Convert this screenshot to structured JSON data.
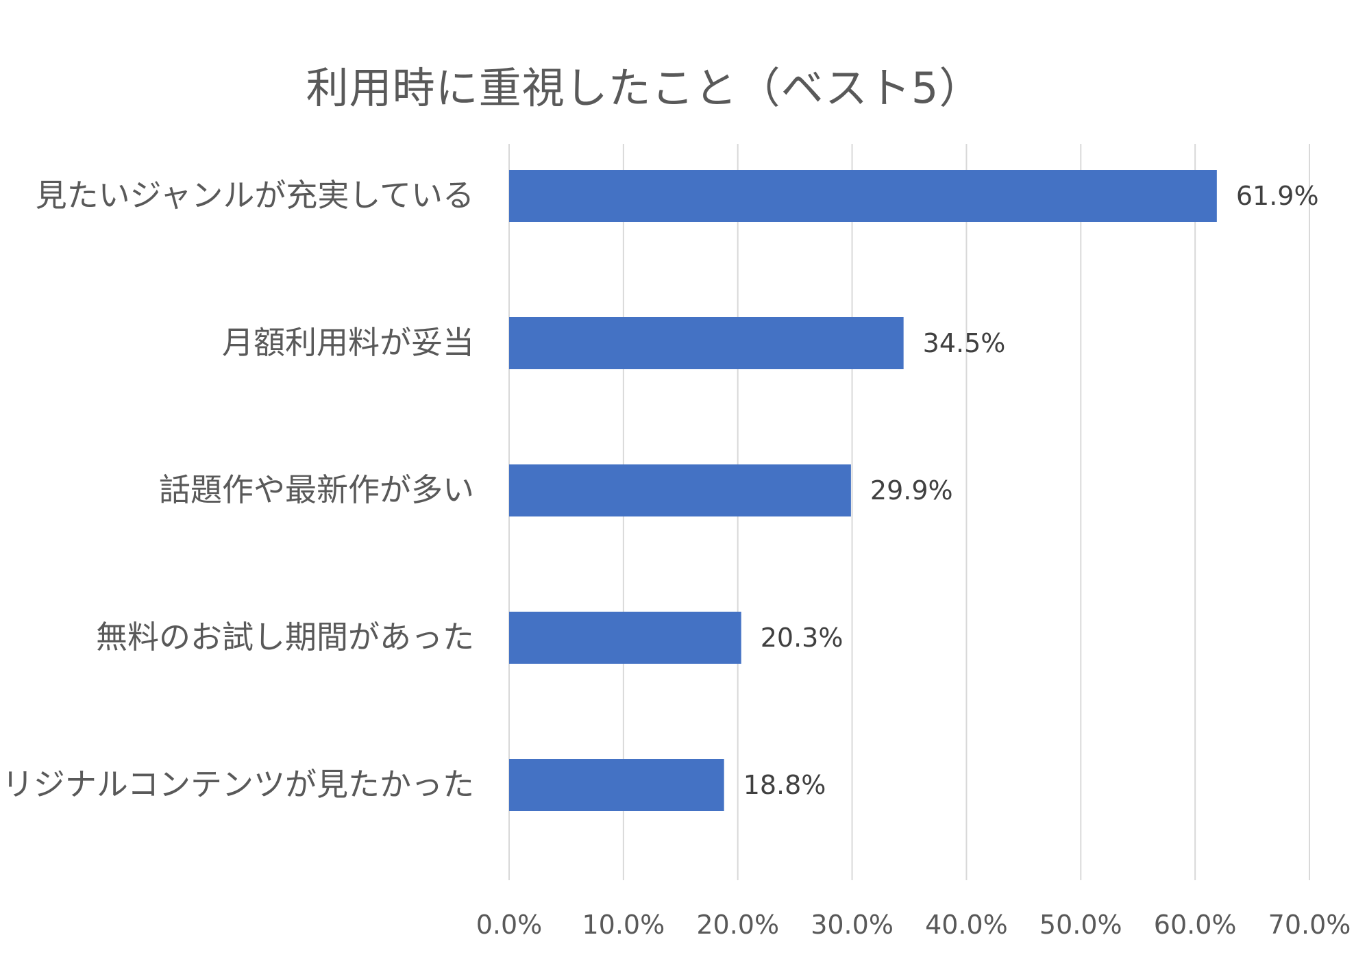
{
  "chart_data": {
    "type": "bar",
    "orientation": "horizontal",
    "title": "利用時に重視したこと（ベスト5）",
    "categories": [
      "見たいジャンルが充実している",
      "月額利用料が妥当",
      "話題作や最新作が多い",
      "無料のお試し期間があった",
      "オリジナルコンテンツが見たかった"
    ],
    "values": [
      61.9,
      34.5,
      29.9,
      20.3,
      18.8
    ],
    "data_labels": [
      "61.9%",
      "34.5%",
      "29.9%",
      "20.3%",
      "18.8%"
    ],
    "x_ticks": [
      "0.0%",
      "10.0%",
      "20.0%",
      "30.0%",
      "40.0%",
      "50.0%",
      "60.0%",
      "70.0%"
    ],
    "xlim": [
      0,
      70
    ],
    "xlabel": "",
    "ylabel": "",
    "grid": "vertical",
    "legend": "none",
    "bar_color": "#4472C4",
    "grid_color": "#D9D9D9",
    "text_color": "#595959",
    "label_color": "#404040"
  }
}
